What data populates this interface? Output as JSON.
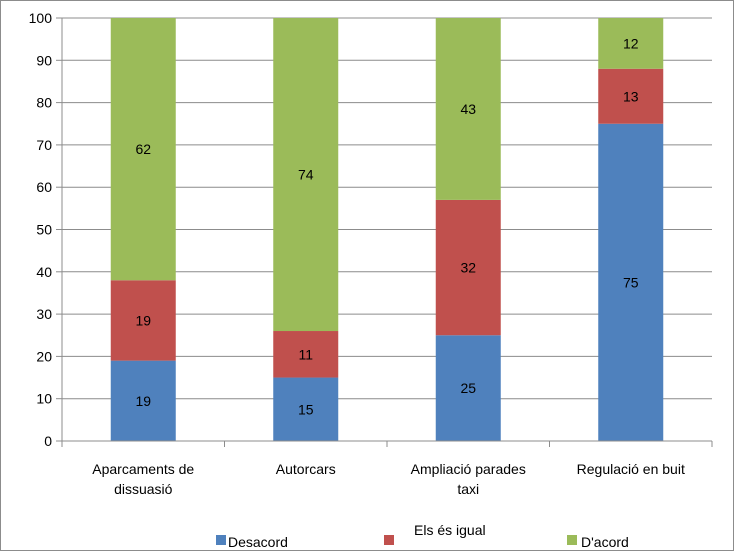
{
  "chart_data": {
    "type": "bar",
    "stacked": true,
    "title": "",
    "xlabel": "",
    "ylabel": "",
    "ylim": [
      0,
      100
    ],
    "yticks": [
      "0",
      "10",
      "20",
      "30",
      "40",
      "50",
      "60",
      "70",
      "80",
      "90",
      "100"
    ],
    "grid": true,
    "legend_position": "bottom",
    "categories": [
      [
        "Aparcaments de",
        "dissuasió"
      ],
      [
        "Autorcars"
      ],
      [
        "Ampliació parades",
        "taxi"
      ],
      [
        "Regulació en buit"
      ]
    ],
    "series": [
      {
        "name": "Desacord",
        "color": "#4f81bd",
        "values": [
          19,
          15,
          25,
          75
        ]
      },
      {
        "name": "Els és igual",
        "color": "#c0504d",
        "values": [
          19,
          11,
          32,
          13
        ]
      },
      {
        "name": "D'acord",
        "color": "#9bbb59",
        "values": [
          62,
          74,
          43,
          12
        ]
      }
    ]
  }
}
